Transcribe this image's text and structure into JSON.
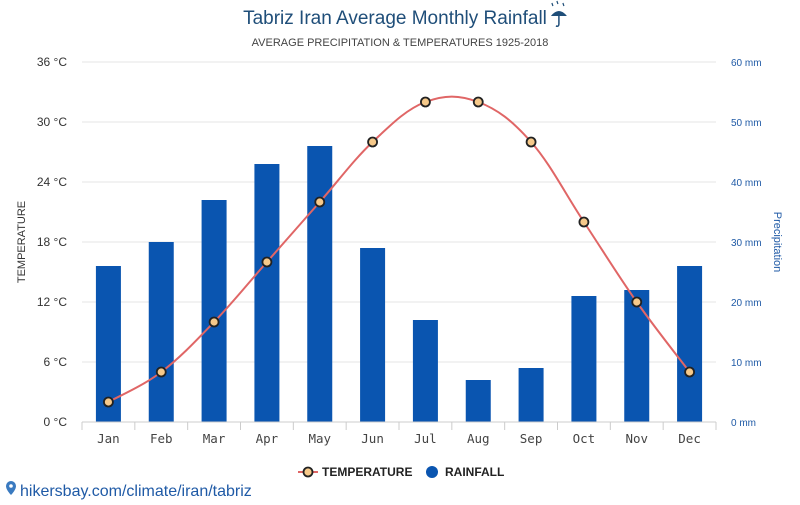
{
  "title": "Tabriz Iran Average Monthly Rainfall",
  "title_icon": "umbrella-rain-icon",
  "subtitle": "AVERAGE PRECIPITATION & TEMPERATURES 1925-2018",
  "source": {
    "icon": "location-pin-icon",
    "text": "hikersbay.com/climate/iran/tabriz"
  },
  "colors": {
    "bar": "#0a55b0",
    "line": "#e06666",
    "marker_fill": "#f6c98a",
    "marker_stroke": "#222222",
    "grid": "#e6e6e6",
    "title": "#1f4e79",
    "right_axis": "#1f5aa6"
  },
  "chart_data": {
    "type": "bar",
    "title": "Tabriz Iran Average Monthly Rainfall",
    "subtitle": "AVERAGE PRECIPITATION & TEMPERATURES 1925-2018",
    "categories": [
      "Jan",
      "Feb",
      "Mar",
      "Apr",
      "May",
      "Jun",
      "Jul",
      "Aug",
      "Sep",
      "Oct",
      "Nov",
      "Dec"
    ],
    "series": [
      {
        "name": "RAINFALL",
        "type": "bar",
        "axis": "right",
        "values": [
          26,
          30,
          37,
          43,
          46,
          29,
          17,
          7,
          9,
          21,
          22,
          26
        ]
      },
      {
        "name": "TEMPERATURE",
        "type": "line",
        "axis": "left",
        "values": [
          2,
          5,
          10,
          16,
          22,
          28,
          32,
          32,
          28,
          20,
          12,
          5
        ]
      }
    ],
    "y_left": {
      "label": "TEMPERATURE",
      "range": [
        0,
        36
      ],
      "ticks": [
        0,
        6,
        12,
        18,
        24,
        30,
        36
      ],
      "tick_labels": [
        "0 °C",
        "6 °C",
        "12 °C",
        "18 °C",
        "24 °C",
        "30 °C",
        "36 °C"
      ]
    },
    "y_right": {
      "label": "Precipitation",
      "range": [
        0,
        60
      ],
      "ticks": [
        0,
        10,
        20,
        30,
        40,
        50,
        60
      ],
      "tick_labels": [
        "0 mm",
        "10 mm",
        "20 mm",
        "30 mm",
        "40 mm",
        "50 mm",
        "60 mm"
      ]
    },
    "grid": true,
    "legend": {
      "position": "bottom-center",
      "items": [
        "TEMPERATURE",
        "RAINFALL"
      ]
    }
  }
}
